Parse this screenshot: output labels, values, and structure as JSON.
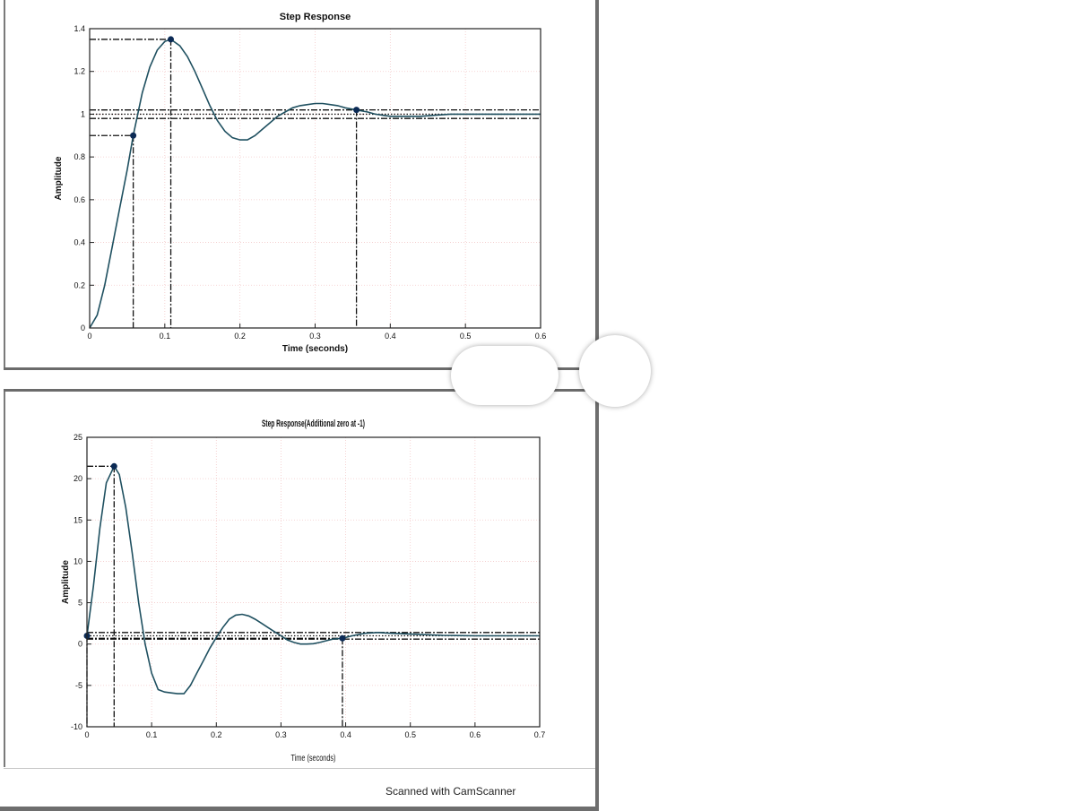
{
  "footer": {
    "scanner_label": "Scanned with CamScanner"
  },
  "chart_data": [
    {
      "type": "line",
      "title": "Step Response",
      "xlabel": "Time (seconds)",
      "ylabel": "Amplitude",
      "xlim": [
        0,
        0.6
      ],
      "ylim": [
        0,
        1.4
      ],
      "xticks": [
        "0",
        "0.1",
        "0.2",
        "0.3",
        "0.4",
        "0.5",
        "0.6"
      ],
      "yticks": [
        "0",
        "0.2",
        "0.4",
        "0.6",
        "0.8",
        "1",
        "1.2",
        "1.4"
      ],
      "grid": true,
      "color": "#1f5060",
      "points": [
        [
          0.058,
          0.9
        ],
        [
          0.108,
          1.35
        ],
        [
          0.355,
          1.02
        ]
      ],
      "hlines": [
        1.02,
        1.0,
        0.98
      ],
      "series": [
        {
          "x": [
            0,
            0.01,
            0.02,
            0.03,
            0.04,
            0.05,
            0.058,
            0.07,
            0.08,
            0.09,
            0.1,
            0.108,
            0.12,
            0.13,
            0.14,
            0.15,
            0.16,
            0.17,
            0.18,
            0.19,
            0.2,
            0.21,
            0.22,
            0.23,
            0.24,
            0.25,
            0.26,
            0.27,
            0.28,
            0.29,
            0.3,
            0.31,
            0.32,
            0.33,
            0.34,
            0.355,
            0.37,
            0.38,
            0.39,
            0.4,
            0.42,
            0.44,
            0.46,
            0.48,
            0.5,
            0.52,
            0.55,
            0.58,
            0.6
          ],
          "y": [
            0,
            0.06,
            0.2,
            0.38,
            0.56,
            0.74,
            0.9,
            1.1,
            1.22,
            1.3,
            1.34,
            1.35,
            1.32,
            1.27,
            1.2,
            1.12,
            1.04,
            0.97,
            0.92,
            0.89,
            0.88,
            0.88,
            0.9,
            0.93,
            0.96,
            0.99,
            1.01,
            1.03,
            1.04,
            1.045,
            1.05,
            1.05,
            1.045,
            1.04,
            1.03,
            1.02,
            1.01,
            1.0,
            0.995,
            0.99,
            0.99,
            0.99,
            0.995,
            1.0,
            1.0,
            1.0,
            1.0,
            1.0,
            1.0
          ]
        }
      ]
    },
    {
      "type": "line",
      "title": "Step Response(Additional zero at -1)",
      "xlabel": "Time (seconds)",
      "ylabel": "Amplitude",
      "xlim": [
        0,
        0.7
      ],
      "ylim": [
        -10,
        25
      ],
      "xticks": [
        "0",
        "0.1",
        "0.2",
        "0.3",
        "0.4",
        "0.5",
        "0.6",
        "0.7"
      ],
      "yticks": [
        "-10",
        "-5",
        "0",
        "5",
        "10",
        "15",
        "20",
        "25"
      ],
      "grid": true,
      "color": "#1f5060",
      "points": [
        [
          0,
          1
        ],
        [
          0.042,
          21.5
        ],
        [
          0.395,
          0.7
        ]
      ],
      "hlines": [
        1.4,
        1.0,
        0.6
      ],
      "series": [
        {
          "x": [
            0,
            0.01,
            0.02,
            0.03,
            0.042,
            0.05,
            0.06,
            0.07,
            0.08,
            0.09,
            0.1,
            0.11,
            0.12,
            0.13,
            0.14,
            0.15,
            0.16,
            0.17,
            0.18,
            0.19,
            0.2,
            0.21,
            0.22,
            0.23,
            0.24,
            0.25,
            0.26,
            0.27,
            0.28,
            0.29,
            0.3,
            0.31,
            0.32,
            0.33,
            0.34,
            0.35,
            0.36,
            0.37,
            0.38,
            0.395,
            0.41,
            0.43,
            0.45,
            0.47,
            0.5,
            0.55,
            0.6,
            0.65,
            0.7
          ],
          "y": [
            1,
            7,
            14,
            19.5,
            21.5,
            20.5,
            16.5,
            11,
            5,
            0,
            -3.5,
            -5.5,
            -5.8,
            -5.9,
            -6,
            -6,
            -5,
            -3.5,
            -2,
            -0.5,
            0.8,
            2,
            3,
            3.5,
            3.6,
            3.4,
            3,
            2.5,
            2,
            1.5,
            1,
            0.5,
            0.2,
            0,
            0,
            0.05,
            0.2,
            0.4,
            0.6,
            0.7,
            1.0,
            1.3,
            1.4,
            1.3,
            1.2,
            1.05,
            1.0,
            1.0,
            1.0
          ]
        }
      ]
    }
  ]
}
